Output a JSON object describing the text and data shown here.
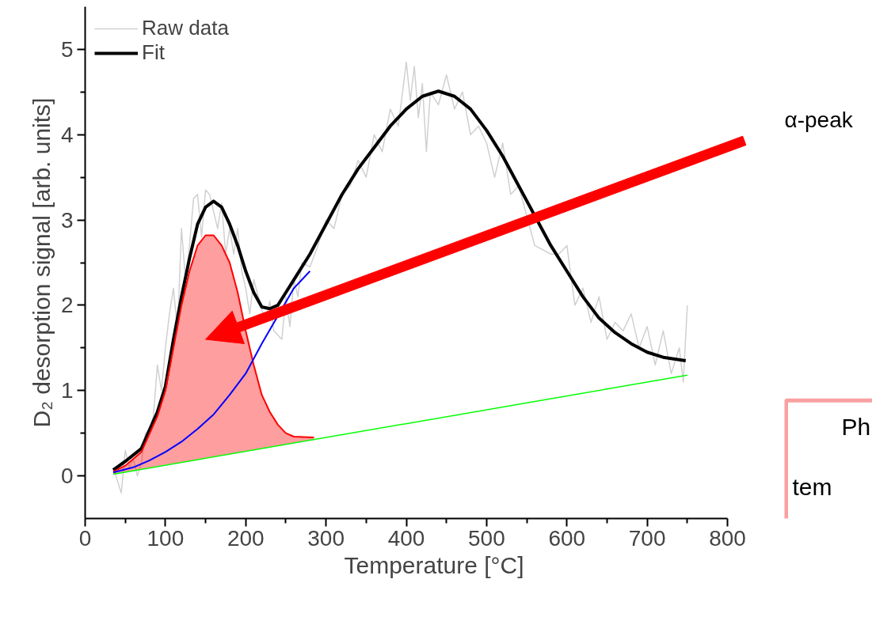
{
  "chart_data": {
    "type": "line",
    "xlabel": "Temperature [°C]",
    "ylabel": "D₂ desorption signal [arb. units]",
    "xlim": [
      0,
      800
    ],
    "ylim": [
      -0.5,
      5.5
    ],
    "xticks": [
      0,
      100,
      200,
      300,
      400,
      500,
      600,
      700,
      800
    ],
    "yticks": [
      0,
      1,
      2,
      3,
      4,
      5
    ],
    "grid": false,
    "legend": "top left",
    "marker": "none",
    "line_style": "solid",
    "series": [
      {
        "name": "Raw data",
        "color": "#d0d0d0",
        "x": [
          35,
          40,
          45,
          50,
          55,
          60,
          65,
          70,
          75,
          80,
          85,
          90,
          95,
          100,
          105,
          110,
          115,
          120,
          125,
          130,
          135,
          140,
          145,
          150,
          155,
          160,
          165,
          170,
          175,
          180,
          185,
          190,
          195,
          200,
          205,
          210,
          220,
          225,
          230,
          235,
          245,
          250,
          255,
          260,
          265,
          270,
          280,
          290,
          300,
          310,
          320,
          330,
          340,
          350,
          360,
          370,
          380,
          390,
          400,
          405,
          410,
          415,
          420,
          425,
          430,
          440,
          450,
          460,
          470,
          480,
          490,
          500,
          510,
          520,
          530,
          540,
          560,
          580,
          590,
          600,
          610,
          620,
          630,
          640,
          650,
          660,
          670,
          680,
          690,
          700,
          710,
          720,
          730,
          740,
          745,
          750
        ],
        "values": [
          0.1,
          -0.05,
          -0.2,
          0.3,
          0.1,
          0.2,
          0.0,
          0.15,
          0.5,
          0.55,
          0.7,
          1.3,
          1.0,
          1.5,
          1.9,
          2.2,
          1.7,
          2.9,
          2.3,
          2.7,
          3.25,
          3.3,
          2.8,
          3.35,
          3.3,
          3.1,
          2.9,
          3.2,
          2.6,
          2.9,
          2.6,
          2.9,
          2.4,
          2.2,
          1.9,
          2.3,
          1.95,
          1.8,
          2.05,
          1.7,
          1.6,
          2.1,
          1.75,
          2.3,
          2.1,
          2.5,
          2.45,
          2.7,
          3.0,
          2.9,
          3.3,
          3.4,
          3.7,
          3.5,
          4.0,
          3.8,
          4.3,
          4.1,
          4.85,
          4.4,
          4.8,
          4.2,
          4.6,
          3.8,
          4.5,
          4.35,
          4.7,
          4.3,
          4.5,
          4.0,
          4.1,
          3.9,
          3.5,
          3.9,
          3.3,
          3.4,
          2.7,
          2.6,
          2.6,
          2.7,
          2.0,
          2.2,
          1.8,
          2.1,
          1.6,
          1.8,
          1.7,
          1.9,
          1.5,
          1.75,
          1.3,
          1.7,
          1.2,
          1.5,
          1.1,
          2.0
        ]
      },
      {
        "name": "Fit",
        "color": "#000000",
        "x": [
          35,
          50,
          70,
          90,
          100,
          110,
          120,
          130,
          140,
          150,
          160,
          170,
          180,
          190,
          200,
          210,
          220,
          230,
          240,
          250,
          260,
          280,
          300,
          320,
          340,
          360,
          380,
          400,
          420,
          440,
          460,
          480,
          500,
          520,
          540,
          560,
          580,
          600,
          620,
          640,
          660,
          680,
          700,
          720,
          748
        ],
        "values": [
          0.07,
          0.17,
          0.32,
          0.75,
          1.05,
          1.6,
          2.1,
          2.55,
          2.95,
          3.15,
          3.22,
          3.15,
          2.95,
          2.7,
          2.4,
          2.15,
          1.98,
          1.96,
          2.0,
          2.15,
          2.3,
          2.6,
          2.95,
          3.3,
          3.6,
          3.85,
          4.1,
          4.3,
          4.45,
          4.51,
          4.45,
          4.3,
          4.05,
          3.75,
          3.4,
          3.05,
          2.7,
          2.4,
          2.1,
          1.85,
          1.68,
          1.55,
          1.45,
          1.39,
          1.35
        ]
      },
      {
        "color": "#ff0000",
        "x": [
          35,
          50,
          70,
          90,
          100,
          110,
          120,
          130,
          140,
          150,
          160,
          170,
          180,
          190,
          200,
          210,
          220,
          230,
          240,
          250,
          260,
          285
        ],
        "values": [
          0.05,
          0.12,
          0.28,
          0.7,
          1.0,
          1.5,
          2.0,
          2.4,
          2.7,
          2.82,
          2.82,
          2.7,
          2.5,
          2.15,
          1.7,
          1.3,
          0.95,
          0.75,
          0.6,
          0.5,
          0.46,
          0.45
        ],
        "lower": [
          0.02,
          0.04,
          0.08,
          0.11,
          0.13,
          0.14,
          0.16,
          0.17,
          0.19,
          0.21,
          0.22,
          0.24,
          0.25,
          0.27,
          0.29,
          0.3,
          0.32,
          0.34,
          0.35,
          0.37,
          0.38,
          0.43
        ],
        "upper": [
          0.05,
          0.12,
          0.28,
          0.7,
          1.0,
          1.5,
          2.0,
          2.4,
          2.7,
          2.82,
          2.82,
          2.7,
          2.5,
          2.15,
          1.7,
          1.3,
          0.95,
          0.75,
          0.6,
          0.5,
          0.46,
          0.45
        ]
      },
      {
        "color": "#0000ff",
        "x": [
          35,
          60,
          80,
          100,
          120,
          140,
          160,
          180,
          200,
          220,
          260,
          280
        ],
        "values": [
          0.04,
          0.1,
          0.18,
          0.28,
          0.4,
          0.55,
          0.72,
          0.95,
          1.2,
          1.55,
          2.2,
          2.4
        ]
      },
      {
        "color": "#00ff00",
        "x": [
          35,
          750
        ],
        "values": [
          0.02,
          1.18
        ]
      }
    ],
    "annotations": [
      "α-peak",
      "Ph",
      "tem"
    ]
  }
}
